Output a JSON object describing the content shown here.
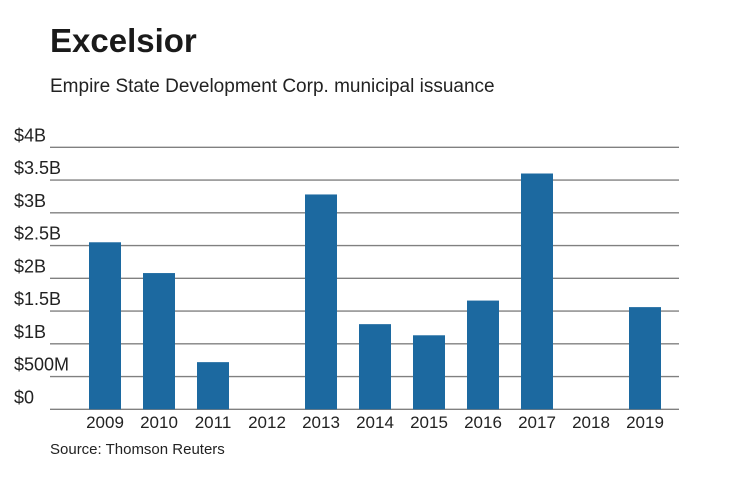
{
  "chart_data": {
    "type": "bar",
    "title": "Excelsior",
    "subtitle": "Empire State Development Corp. municipal issuance",
    "source": "Source: Thomson Reuters",
    "xlabel": "",
    "ylabel": "",
    "categories": [
      "2009",
      "2010",
      "2011",
      "2012",
      "2013",
      "2014",
      "2015",
      "2016",
      "2017",
      "2018",
      "2019"
    ],
    "values": [
      2.55,
      2.08,
      0.72,
      0,
      3.28,
      1.3,
      1.13,
      1.66,
      3.6,
      0,
      1.56
    ],
    "units": "billions USD",
    "ylim": [
      0,
      4
    ],
    "yticks": [
      0,
      0.5,
      1,
      1.5,
      2,
      2.5,
      3,
      3.5,
      4
    ],
    "ytick_labels": [
      "$0",
      "$500M",
      "$1B",
      "$1.5B",
      "$2B",
      "$2.5B",
      "$3B",
      "$3.5B",
      "$4B"
    ],
    "grid": true,
    "bar_color": "#1c69a0",
    "grid_color": "#808080"
  }
}
